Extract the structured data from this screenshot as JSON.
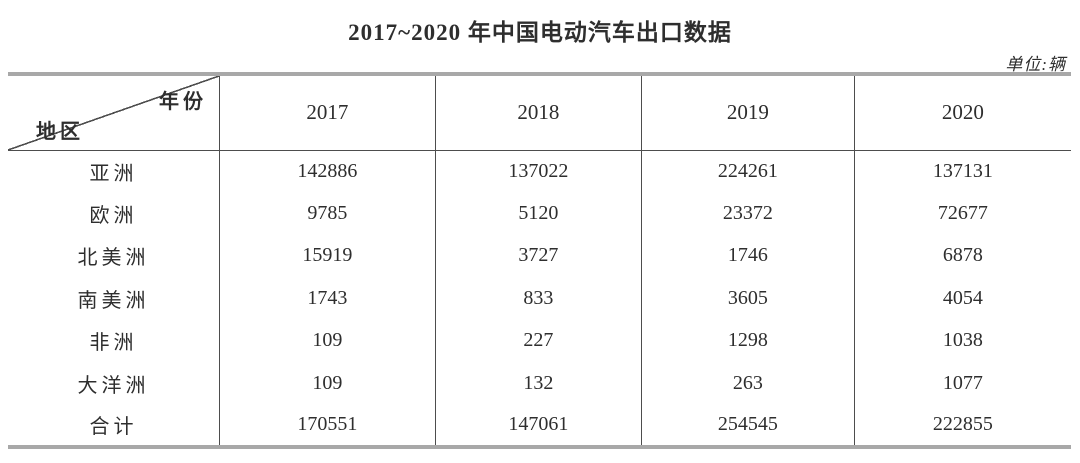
{
  "title": "2017~2020 年中国电动汽车出口数据",
  "unit_label": "单位:辆",
  "corner": {
    "top_right": "年份",
    "bottom_left": "地区"
  },
  "chart_data": {
    "type": "table",
    "title": "2017~2020 年中国电动汽车出口数据",
    "unit": "单位:辆",
    "column_header_label": "年份",
    "row_header_label": "地区",
    "columns": [
      "2017",
      "2018",
      "2019",
      "2020"
    ],
    "rows": [
      {
        "region": "亚洲",
        "values": [
          142886,
          137022,
          224261,
          137131
        ]
      },
      {
        "region": "欧洲",
        "values": [
          9785,
          5120,
          23372,
          72677
        ]
      },
      {
        "region": "北美洲",
        "values": [
          15919,
          3727,
          1746,
          6878
        ]
      },
      {
        "region": "南美洲",
        "values": [
          1743,
          833,
          3605,
          4054
        ]
      },
      {
        "region": "非洲",
        "values": [
          109,
          227,
          1298,
          1038
        ]
      },
      {
        "region": "大洋洲",
        "values": [
          109,
          132,
          263,
          1077
        ]
      },
      {
        "region": "合计",
        "values": [
          170551,
          147061,
          254545,
          222855
        ]
      }
    ]
  },
  "colors": {
    "text": "#2e2e2e",
    "border_thick": "#a8a8a8",
    "border_thin": "#4d4d4d",
    "background": "#ffffff"
  }
}
